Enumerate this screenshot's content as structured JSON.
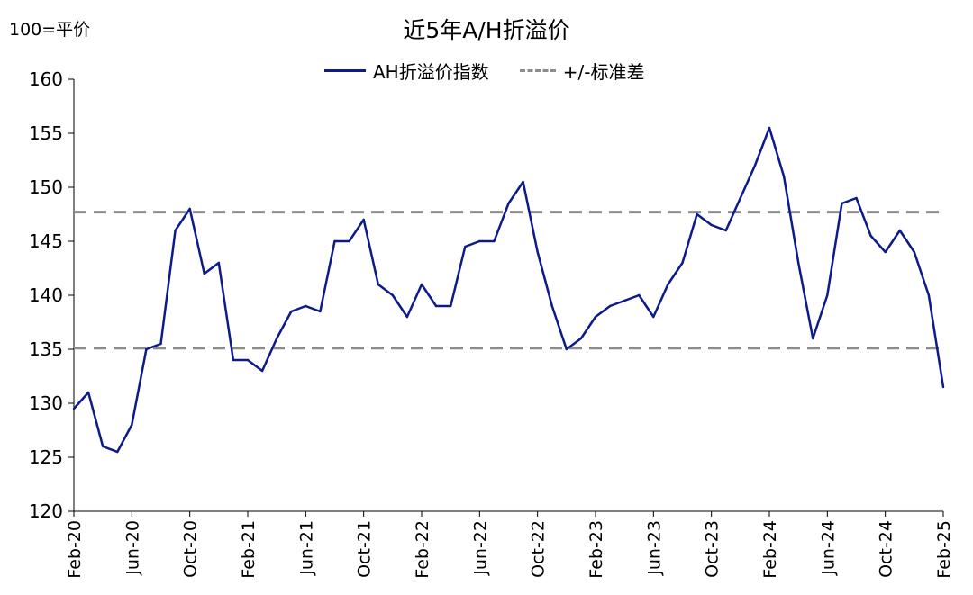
{
  "chart_data": {
    "type": "line",
    "title": "近5年A/H折溢价",
    "unit_label": "100=平价",
    "legend": [
      "AH折溢价指数",
      "+/-标准差"
    ],
    "ylim": [
      120,
      160
    ],
    "yticks": [
      120,
      125,
      130,
      135,
      140,
      145,
      150,
      155,
      160
    ],
    "xticks": [
      "Feb-20",
      "Jun-20",
      "Oct-20",
      "Feb-21",
      "Jun-21",
      "Oct-21",
      "Feb-22",
      "Jun-22",
      "Oct-22",
      "Feb-23",
      "Jun-23",
      "Oct-23",
      "Feb-24",
      "Jun-24",
      "Oct-24",
      "Feb-25"
    ],
    "x_range": [
      "2020-02",
      "2025-02"
    ],
    "std_band": {
      "upper": 147.7,
      "lower": 135.1,
      "style": "dashed",
      "color": "#8c8c8c"
    },
    "series": [
      {
        "name": "AH折溢价指数",
        "color": "#0d1a8a",
        "x": [
          "2020-02",
          "2020-03",
          "2020-04",
          "2020-05",
          "2020-06",
          "2020-07",
          "2020-08",
          "2020-09",
          "2020-10",
          "2020-11",
          "2020-12",
          "2021-01",
          "2021-02",
          "2021-03",
          "2021-04",
          "2021-05",
          "2021-06",
          "2021-07",
          "2021-08",
          "2021-09",
          "2021-10",
          "2021-11",
          "2021-12",
          "2022-01",
          "2022-02",
          "2022-03",
          "2022-04",
          "2022-05",
          "2022-06",
          "2022-07",
          "2022-08",
          "2022-09",
          "2022-10",
          "2022-11",
          "2022-12",
          "2023-01",
          "2023-02",
          "2023-03",
          "2023-04",
          "2023-05",
          "2023-06",
          "2023-07",
          "2023-08",
          "2023-09",
          "2023-10",
          "2023-11",
          "2023-12",
          "2024-01",
          "2024-02",
          "2024-03",
          "2024-04",
          "2024-05",
          "2024-06",
          "2024-07",
          "2024-08",
          "2024-09",
          "2024-10",
          "2024-11",
          "2024-12",
          "2025-01",
          "2025-02"
        ],
        "values": [
          129.5,
          131.0,
          126.0,
          125.5,
          128.0,
          135.0,
          135.5,
          146.0,
          148.0,
          142.0,
          143.0,
          134.0,
          134.0,
          133.0,
          136.0,
          138.5,
          139.0,
          138.5,
          145.0,
          145.0,
          147.0,
          141.0,
          140.0,
          138.0,
          141.0,
          139.0,
          139.0,
          144.5,
          145.0,
          145.0,
          148.5,
          150.5,
          144.0,
          139.0,
          135.0,
          136.0,
          138.0,
          139.0,
          139.5,
          140.0,
          138.0,
          141.0,
          143.0,
          147.5,
          146.5,
          146.0,
          149.0,
          152.0,
          155.5,
          151.0,
          143.0,
          136.0,
          140.0,
          148.5,
          149.0,
          145.5,
          144.0,
          146.0,
          144.0,
          140.0,
          131.5
        ]
      }
    ],
    "grid": false,
    "legend_position": "top-center"
  }
}
